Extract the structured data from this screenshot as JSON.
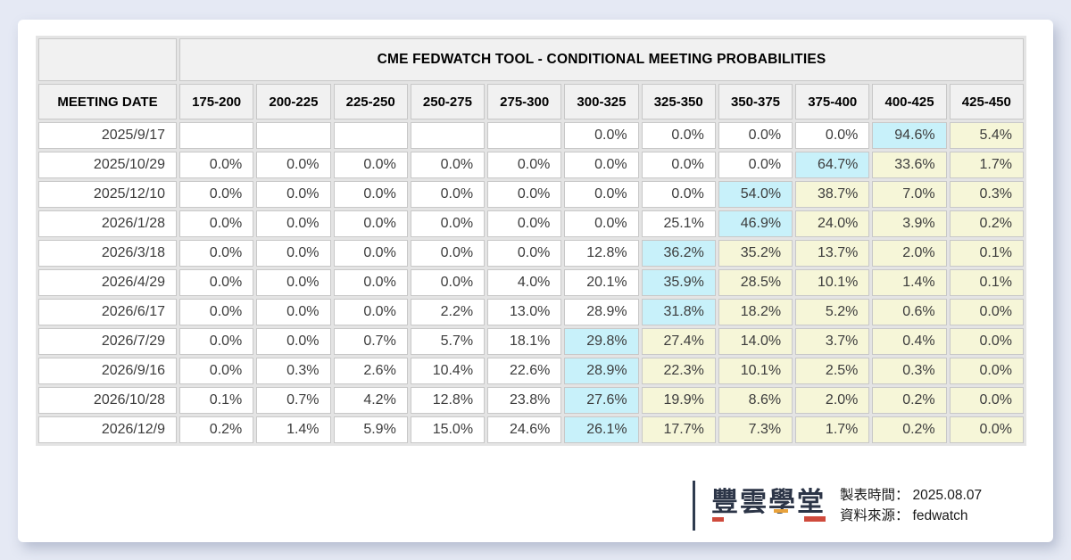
{
  "table": {
    "title": "CME FEDWATCH TOOL - CONDITIONAL MEETING PROBABILITIES",
    "date_header": "MEETING DATE",
    "rate_headers": [
      "175-200",
      "200-225",
      "225-250",
      "250-275",
      "275-300",
      "300-325",
      "325-350",
      "350-375",
      "375-400",
      "400-425",
      "425-450"
    ],
    "rows": [
      {
        "date": "2025/9/17",
        "values": [
          "",
          "",
          "",
          "",
          "",
          "0.0%",
          "0.0%",
          "0.0%",
          "0.0%",
          "94.6%",
          "5.4%"
        ],
        "hl": [
          "",
          "",
          "",
          "",
          "",
          "",
          "",
          "",
          "",
          "c",
          "y"
        ]
      },
      {
        "date": "2025/10/29",
        "values": [
          "0.0%",
          "0.0%",
          "0.0%",
          "0.0%",
          "0.0%",
          "0.0%",
          "0.0%",
          "0.0%",
          "64.7%",
          "33.6%",
          "1.7%"
        ],
        "hl": [
          "",
          "",
          "",
          "",
          "",
          "",
          "",
          "",
          "c",
          "y",
          "y"
        ]
      },
      {
        "date": "2025/12/10",
        "values": [
          "0.0%",
          "0.0%",
          "0.0%",
          "0.0%",
          "0.0%",
          "0.0%",
          "0.0%",
          "54.0%",
          "38.7%",
          "7.0%",
          "0.3%"
        ],
        "hl": [
          "",
          "",
          "",
          "",
          "",
          "",
          "",
          "c",
          "y",
          "y",
          "y"
        ]
      },
      {
        "date": "2026/1/28",
        "values": [
          "0.0%",
          "0.0%",
          "0.0%",
          "0.0%",
          "0.0%",
          "0.0%",
          "25.1%",
          "46.9%",
          "24.0%",
          "3.9%",
          "0.2%"
        ],
        "hl": [
          "",
          "",
          "",
          "",
          "",
          "",
          "",
          "c",
          "y",
          "y",
          "y"
        ]
      },
      {
        "date": "2026/3/18",
        "values": [
          "0.0%",
          "0.0%",
          "0.0%",
          "0.0%",
          "0.0%",
          "12.8%",
          "36.2%",
          "35.2%",
          "13.7%",
          "2.0%",
          "0.1%"
        ],
        "hl": [
          "",
          "",
          "",
          "",
          "",
          "",
          "c",
          "y",
          "y",
          "y",
          "y"
        ]
      },
      {
        "date": "2026/4/29",
        "values": [
          "0.0%",
          "0.0%",
          "0.0%",
          "0.0%",
          "4.0%",
          "20.1%",
          "35.9%",
          "28.5%",
          "10.1%",
          "1.4%",
          "0.1%"
        ],
        "hl": [
          "",
          "",
          "",
          "",
          "",
          "",
          "c",
          "y",
          "y",
          "y",
          "y"
        ]
      },
      {
        "date": "2026/6/17",
        "values": [
          "0.0%",
          "0.0%",
          "0.0%",
          "2.2%",
          "13.0%",
          "28.9%",
          "31.8%",
          "18.2%",
          "5.2%",
          "0.6%",
          "0.0%"
        ],
        "hl": [
          "",
          "",
          "",
          "",
          "",
          "",
          "c",
          "y",
          "y",
          "y",
          "y"
        ]
      },
      {
        "date": "2026/7/29",
        "values": [
          "0.0%",
          "0.0%",
          "0.7%",
          "5.7%",
          "18.1%",
          "29.8%",
          "27.4%",
          "14.0%",
          "3.7%",
          "0.4%",
          "0.0%"
        ],
        "hl": [
          "",
          "",
          "",
          "",
          "",
          "c",
          "y",
          "y",
          "y",
          "y",
          "y"
        ]
      },
      {
        "date": "2026/9/16",
        "values": [
          "0.0%",
          "0.3%",
          "2.6%",
          "10.4%",
          "22.6%",
          "28.9%",
          "22.3%",
          "10.1%",
          "2.5%",
          "0.3%",
          "0.0%"
        ],
        "hl": [
          "",
          "",
          "",
          "",
          "",
          "c",
          "y",
          "y",
          "y",
          "y",
          "y"
        ]
      },
      {
        "date": "2026/10/28",
        "values": [
          "0.1%",
          "0.7%",
          "4.2%",
          "12.8%",
          "23.8%",
          "27.6%",
          "19.9%",
          "8.6%",
          "2.0%",
          "0.2%",
          "0.0%"
        ],
        "hl": [
          "",
          "",
          "",
          "",
          "",
          "c",
          "y",
          "y",
          "y",
          "y",
          "y"
        ]
      },
      {
        "date": "2026/12/9",
        "values": [
          "0.2%",
          "1.4%",
          "5.9%",
          "15.0%",
          "24.6%",
          "26.1%",
          "17.7%",
          "7.3%",
          "1.7%",
          "0.2%",
          "0.0%"
        ],
        "hl": [
          "",
          "",
          "",
          "",
          "",
          "c",
          "y",
          "y",
          "y",
          "y",
          "y"
        ]
      }
    ]
  },
  "footer": {
    "logo_text": "豐雲學堂",
    "created_label": "製表時間：",
    "created_value": "2025.08.07",
    "source_label": "資料來源：",
    "source_value": "fedwatch"
  },
  "colors": {
    "page_background": "#e5e9f4",
    "card_background": "#ffffff",
    "header_cell": "#f1f1f1",
    "highlight_cyan": "#c8f1fa",
    "highlight_yellow": "#f6f6d8",
    "cell_border": "#c8c8c8",
    "logo_navy": "#2c3547",
    "logo_red": "#cf4a3c"
  },
  "chart_data": {
    "type": "table",
    "title": "CME FEDWATCH TOOL - CONDITIONAL MEETING PROBABILITIES",
    "row_header": "MEETING DATE",
    "columns_bps": [
      "175-200",
      "200-225",
      "225-250",
      "250-275",
      "275-300",
      "300-325",
      "325-350",
      "350-375",
      "375-400",
      "400-425",
      "425-450"
    ],
    "rows": [
      {
        "date": "2025/9/17",
        "probabilities_pct": [
          null,
          null,
          null,
          null,
          null,
          0.0,
          0.0,
          0.0,
          0.0,
          94.6,
          5.4
        ]
      },
      {
        "date": "2025/10/29",
        "probabilities_pct": [
          0.0,
          0.0,
          0.0,
          0.0,
          0.0,
          0.0,
          0.0,
          0.0,
          64.7,
          33.6,
          1.7
        ]
      },
      {
        "date": "2025/12/10",
        "probabilities_pct": [
          0.0,
          0.0,
          0.0,
          0.0,
          0.0,
          0.0,
          0.0,
          54.0,
          38.7,
          7.0,
          0.3
        ]
      },
      {
        "date": "2026/1/28",
        "probabilities_pct": [
          0.0,
          0.0,
          0.0,
          0.0,
          0.0,
          0.0,
          25.1,
          46.9,
          24.0,
          3.9,
          0.2
        ]
      },
      {
        "date": "2026/3/18",
        "probabilities_pct": [
          0.0,
          0.0,
          0.0,
          0.0,
          0.0,
          12.8,
          36.2,
          35.2,
          13.7,
          2.0,
          0.1
        ]
      },
      {
        "date": "2026/4/29",
        "probabilities_pct": [
          0.0,
          0.0,
          0.0,
          0.0,
          4.0,
          20.1,
          35.9,
          28.5,
          10.1,
          1.4,
          0.1
        ]
      },
      {
        "date": "2026/6/17",
        "probabilities_pct": [
          0.0,
          0.0,
          0.0,
          2.2,
          13.0,
          28.9,
          31.8,
          18.2,
          5.2,
          0.6,
          0.0
        ]
      },
      {
        "date": "2026/7/29",
        "probabilities_pct": [
          0.0,
          0.0,
          0.7,
          5.7,
          18.1,
          29.8,
          27.4,
          14.0,
          3.7,
          0.4,
          0.0
        ]
      },
      {
        "date": "2026/9/16",
        "probabilities_pct": [
          0.0,
          0.3,
          2.6,
          10.4,
          22.6,
          28.9,
          22.3,
          10.1,
          2.5,
          0.3,
          0.0
        ]
      },
      {
        "date": "2026/10/28",
        "probabilities_pct": [
          0.1,
          0.7,
          4.2,
          12.8,
          23.8,
          27.6,
          19.9,
          8.6,
          2.0,
          0.2,
          0.0
        ]
      },
      {
        "date": "2026/12/9",
        "probabilities_pct": [
          0.2,
          1.4,
          5.9,
          15.0,
          24.6,
          26.1,
          17.7,
          7.3,
          1.7,
          0.2,
          0.0
        ]
      }
    ],
    "highlight_rule": {
      "cyan": "highest probability cell in each row",
      "yellow": "cells to the right of the highest cell"
    },
    "legend_position": "none",
    "grid": true
  }
}
